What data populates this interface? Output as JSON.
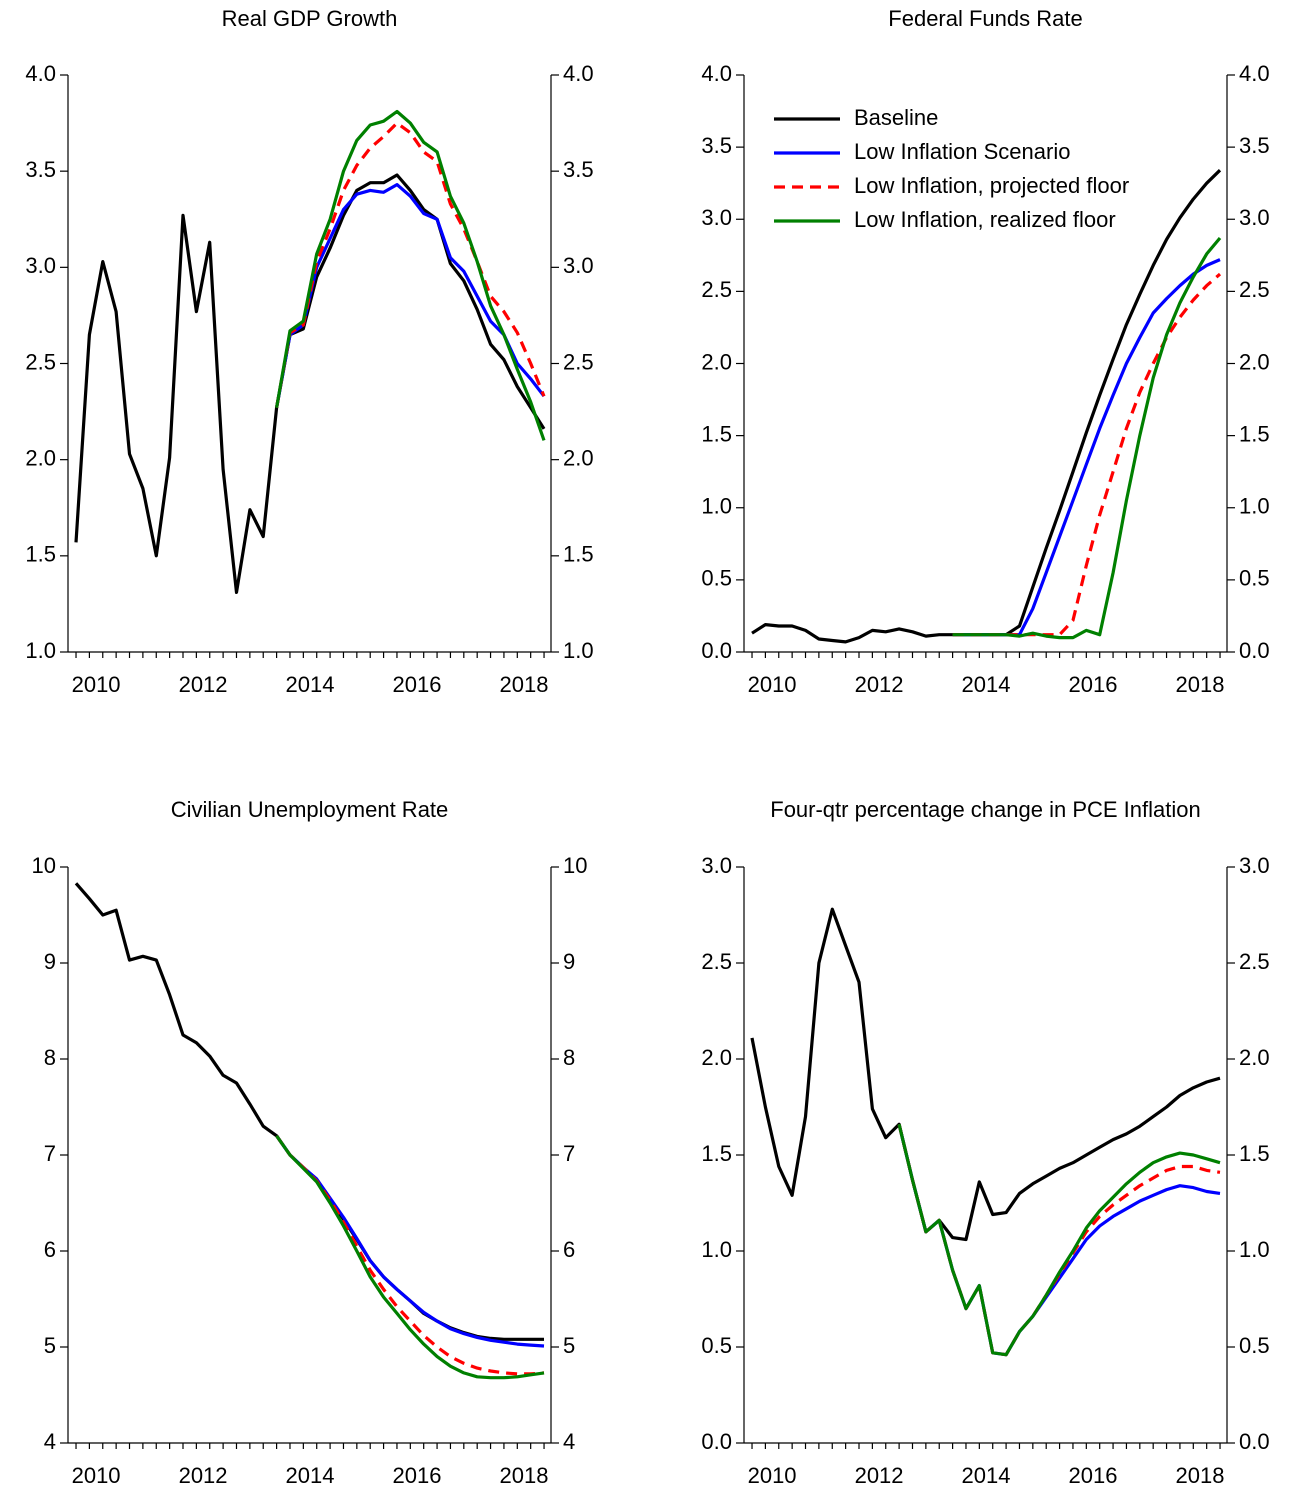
{
  "chart_data": [
    {
      "type": "line",
      "title": "Real GDP Growth",
      "x": [
        2010,
        2010.25,
        2010.5,
        2010.75,
        2011,
        2011.25,
        2011.5,
        2011.75,
        2012,
        2012.25,
        2012.5,
        2012.75,
        2013,
        2013.25,
        2013.5,
        2013.75,
        2014,
        2014.25,
        2014.5,
        2014.75,
        2015,
        2015.25,
        2015.5,
        2015.75,
        2016,
        2016.25,
        2016.5,
        2016.75,
        2017,
        2017.25,
        2017.5,
        2017.75,
        2018,
        2018.25,
        2018.5,
        2018.75
      ],
      "xlim": [
        2009.85,
        2018.88
      ],
      "xticks": [
        {
          "value": 2010.375,
          "label": "2010"
        },
        {
          "value": 2012.375,
          "label": "2012"
        },
        {
          "value": 2014.375,
          "label": "2014"
        },
        {
          "value": 2016.375,
          "label": "2016"
        },
        {
          "value": 2018.375,
          "label": "2018"
        }
      ],
      "ylim": [
        1,
        4
      ],
      "yticks": [
        {
          "value": 1,
          "label": "1.0"
        },
        {
          "value": 1.5,
          "label": "1.5"
        },
        {
          "value": 2,
          "label": "2.0"
        },
        {
          "value": 2.5,
          "label": "2.5"
        },
        {
          "value": 3,
          "label": "3.0"
        },
        {
          "value": 3.5,
          "label": "3.5"
        },
        {
          "value": 4,
          "label": "4.0"
        }
      ],
      "series": [
        {
          "color": "#000000",
          "dash": false,
          "values": [
            1.57,
            2.65,
            3.03,
            2.77,
            2.03,
            1.85,
            1.5,
            2.01,
            3.27,
            2.77,
            3.13,
            1.95,
            1.31,
            1.74,
            1.6,
            2.27,
            2.65,
            2.68,
            2.95,
            3.1,
            3.27,
            3.4,
            3.44,
            3.44,
            3.48,
            3.4,
            3.3,
            3.25,
            3.02,
            2.93,
            2.78,
            2.6,
            2.52,
            2.38,
            2.27,
            2.16
          ]
        },
        {
          "color": "#0000ff",
          "dash": false,
          "values": [
            null,
            null,
            null,
            null,
            null,
            null,
            null,
            null,
            null,
            null,
            null,
            null,
            null,
            null,
            null,
            2.27,
            2.65,
            2.7,
            3.0,
            3.15,
            3.3,
            3.38,
            3.4,
            3.39,
            3.43,
            3.37,
            3.28,
            3.25,
            3.05,
            2.98,
            2.85,
            2.72,
            2.65,
            2.5,
            2.42,
            2.33
          ]
        },
        {
          "color": "#ff0000",
          "dash": true,
          "values": [
            null,
            null,
            null,
            null,
            null,
            null,
            null,
            null,
            null,
            null,
            null,
            null,
            null,
            null,
            null,
            2.27,
            2.66,
            2.7,
            3.03,
            3.2,
            3.4,
            3.53,
            3.62,
            3.68,
            3.75,
            3.7,
            3.6,
            3.55,
            3.33,
            3.2,
            3.03,
            2.85,
            2.77,
            2.66,
            2.5,
            2.33
          ]
        },
        {
          "color": "#008000",
          "dash": false,
          "values": [
            null,
            null,
            null,
            null,
            null,
            null,
            null,
            null,
            null,
            null,
            null,
            null,
            null,
            null,
            null,
            2.27,
            2.67,
            2.72,
            3.07,
            3.25,
            3.5,
            3.66,
            3.74,
            3.76,
            3.81,
            3.75,
            3.65,
            3.6,
            3.37,
            3.23,
            3.03,
            2.8,
            2.65,
            2.47,
            2.3,
            2.1
          ]
        }
      ]
    },
    {
      "type": "line",
      "title": "Federal Funds Rate",
      "legend": "upper left",
      "x": [
        2010,
        2010.25,
        2010.5,
        2010.75,
        2011,
        2011.25,
        2011.5,
        2011.75,
        2012,
        2012.25,
        2012.5,
        2012.75,
        2013,
        2013.25,
        2013.5,
        2013.75,
        2014,
        2014.25,
        2014.5,
        2014.75,
        2015,
        2015.25,
        2015.5,
        2015.75,
        2016,
        2016.25,
        2016.5,
        2016.75,
        2017,
        2017.25,
        2017.5,
        2017.75,
        2018,
        2018.25,
        2018.5,
        2018.75
      ],
      "xlim": [
        2009.85,
        2018.88
      ],
      "xticks": [
        {
          "value": 2010.375,
          "label": "2010"
        },
        {
          "value": 2012.375,
          "label": "2012"
        },
        {
          "value": 2014.375,
          "label": "2014"
        },
        {
          "value": 2016.375,
          "label": "2016"
        },
        {
          "value": 2018.375,
          "label": "2018"
        }
      ],
      "ylim": [
        0,
        4
      ],
      "yticks": [
        {
          "value": 0,
          "label": "0.0"
        },
        {
          "value": 0.5,
          "label": "0.5"
        },
        {
          "value": 1,
          "label": "1.0"
        },
        {
          "value": 1.5,
          "label": "1.5"
        },
        {
          "value": 2,
          "label": "2.0"
        },
        {
          "value": 2.5,
          "label": "2.5"
        },
        {
          "value": 3,
          "label": "3.0"
        },
        {
          "value": 3.5,
          "label": "3.5"
        },
        {
          "value": 4,
          "label": "4.0"
        }
      ],
      "series": [
        {
          "name": "Baseline",
          "color": "#000000",
          "dash": false,
          "values": [
            0.13,
            0.19,
            0.18,
            0.18,
            0.15,
            0.09,
            0.08,
            0.07,
            0.1,
            0.15,
            0.14,
            0.16,
            0.14,
            0.11,
            0.12,
            0.12,
            0.12,
            0.12,
            0.12,
            0.12,
            0.18,
            0.45,
            0.72,
            0.98,
            1.25,
            1.52,
            1.78,
            2.03,
            2.27,
            2.48,
            2.68,
            2.86,
            3.01,
            3.14,
            3.25,
            3.34
          ]
        },
        {
          "name": "Low Inflation Scenario",
          "color": "#0000ff",
          "dash": false,
          "values": [
            null,
            null,
            null,
            null,
            null,
            null,
            null,
            null,
            null,
            null,
            null,
            null,
            null,
            null,
            null,
            0.12,
            0.12,
            0.12,
            0.12,
            0.12,
            0.12,
            0.3,
            0.55,
            0.8,
            1.05,
            1.3,
            1.55,
            1.78,
            2.0,
            2.18,
            2.35,
            2.45,
            2.54,
            2.62,
            2.68,
            2.72
          ]
        },
        {
          "name": "Low Inflation, projected floor",
          "color": "#ff0000",
          "dash": true,
          "values": [
            null,
            null,
            null,
            null,
            null,
            null,
            null,
            null,
            null,
            null,
            null,
            null,
            null,
            null,
            null,
            0.12,
            0.12,
            0.12,
            0.12,
            0.12,
            0.12,
            0.12,
            0.12,
            0.12,
            0.22,
            0.6,
            0.95,
            1.25,
            1.55,
            1.8,
            2.0,
            2.18,
            2.32,
            2.44,
            2.54,
            2.62
          ]
        },
        {
          "name": "Low Inflation, realized floor",
          "color": "#008000",
          "dash": false,
          "values": [
            null,
            null,
            null,
            null,
            null,
            null,
            null,
            null,
            null,
            null,
            null,
            null,
            null,
            null,
            null,
            0.12,
            0.12,
            0.12,
            0.12,
            0.12,
            0.11,
            0.13,
            0.11,
            0.1,
            0.1,
            0.15,
            0.12,
            0.55,
            1.05,
            1.5,
            1.9,
            2.2,
            2.42,
            2.6,
            2.76,
            2.87
          ]
        }
      ]
    },
    {
      "type": "line",
      "title": "Civilian Unemployment Rate",
      "x": [
        2010,
        2010.25,
        2010.5,
        2010.75,
        2011,
        2011.25,
        2011.5,
        2011.75,
        2012,
        2012.25,
        2012.5,
        2012.75,
        2013,
        2013.25,
        2013.5,
        2013.75,
        2014,
        2014.25,
        2014.5,
        2014.75,
        2015,
        2015.25,
        2015.5,
        2015.75,
        2016,
        2016.25,
        2016.5,
        2016.75,
        2017,
        2017.25,
        2017.5,
        2017.75,
        2018,
        2018.25,
        2018.5,
        2018.75
      ],
      "xlim": [
        2009.85,
        2018.88
      ],
      "xticks": [
        {
          "value": 2010.375,
          "label": "2010"
        },
        {
          "value": 2012.375,
          "label": "2012"
        },
        {
          "value": 2014.375,
          "label": "2014"
        },
        {
          "value": 2016.375,
          "label": "2016"
        },
        {
          "value": 2018.375,
          "label": "2018"
        }
      ],
      "ylim": [
        4,
        10
      ],
      "yticks": [
        4,
        5,
        6,
        7,
        8,
        9,
        10
      ],
      "series": [
        {
          "color": "#000000",
          "dash": false,
          "values": [
            9.83,
            9.67,
            9.5,
            9.55,
            9.03,
            9.07,
            9.03,
            8.67,
            8.25,
            8.17,
            8.03,
            7.83,
            7.75,
            7.53,
            7.3,
            7.2,
            7.0,
            6.87,
            6.73,
            6.53,
            6.33,
            6.12,
            5.9,
            5.73,
            5.6,
            5.48,
            5.35,
            5.27,
            5.2,
            5.15,
            5.11,
            5.09,
            5.08,
            5.08,
            5.08,
            5.08
          ]
        },
        {
          "color": "#0000ff",
          "dash": false,
          "values": [
            null,
            null,
            null,
            null,
            null,
            null,
            null,
            null,
            null,
            null,
            null,
            null,
            null,
            null,
            null,
            7.2,
            7.0,
            6.87,
            6.75,
            6.55,
            6.35,
            6.13,
            5.9,
            5.73,
            5.6,
            5.48,
            5.36,
            5.27,
            5.19,
            5.14,
            5.1,
            5.07,
            5.05,
            5.03,
            5.02,
            5.01
          ]
        },
        {
          "color": "#ff0000",
          "dash": true,
          "values": [
            null,
            null,
            null,
            null,
            null,
            null,
            null,
            null,
            null,
            null,
            null,
            null,
            null,
            null,
            null,
            7.2,
            7.0,
            6.87,
            6.73,
            6.53,
            6.3,
            6.05,
            5.8,
            5.6,
            5.42,
            5.27,
            5.12,
            5.0,
            4.9,
            4.83,
            4.78,
            4.75,
            4.73,
            4.72,
            4.72,
            4.73
          ]
        },
        {
          "color": "#008000",
          "dash": false,
          "values": [
            null,
            null,
            null,
            null,
            null,
            null,
            null,
            null,
            null,
            null,
            null,
            null,
            null,
            null,
            null,
            7.2,
            7.0,
            6.86,
            6.72,
            6.5,
            6.26,
            6.0,
            5.73,
            5.52,
            5.35,
            5.18,
            5.03,
            4.9,
            4.8,
            4.73,
            4.69,
            4.68,
            4.68,
            4.69,
            4.71,
            4.73
          ]
        }
      ]
    },
    {
      "type": "line",
      "title": "Four-qtr percentage change in PCE Inflation",
      "x": [
        2010,
        2010.25,
        2010.5,
        2010.75,
        2011,
        2011.25,
        2011.5,
        2011.75,
        2012,
        2012.25,
        2012.5,
        2012.75,
        2013,
        2013.25,
        2013.5,
        2013.75,
        2014,
        2014.25,
        2014.5,
        2014.75,
        2015,
        2015.25,
        2015.5,
        2015.75,
        2016,
        2016.25,
        2016.5,
        2016.75,
        2017,
        2017.25,
        2017.5,
        2017.75,
        2018,
        2018.25,
        2018.5,
        2018.75
      ],
      "xlim": [
        2009.85,
        2018.88
      ],
      "xticks": [
        {
          "value": 2010.375,
          "label": "2010"
        },
        {
          "value": 2012.375,
          "label": "2012"
        },
        {
          "value": 2014.375,
          "label": "2014"
        },
        {
          "value": 2016.375,
          "label": "2016"
        },
        {
          "value": 2018.375,
          "label": "2018"
        }
      ],
      "ylim": [
        0,
        3
      ],
      "yticks": [
        {
          "value": 0,
          "label": "0.0"
        },
        {
          "value": 0.5,
          "label": "0.5"
        },
        {
          "value": 1,
          "label": "1.0"
        },
        {
          "value": 1.5,
          "label": "1.5"
        },
        {
          "value": 2,
          "label": "2.0"
        },
        {
          "value": 2.5,
          "label": "2.5"
        },
        {
          "value": 3,
          "label": "3.0"
        }
      ],
      "series": [
        {
          "color": "#000000",
          "dash": false,
          "values": [
            2.11,
            1.75,
            1.44,
            1.29,
            1.7,
            2.5,
            2.78,
            2.59,
            2.4,
            1.74,
            1.59,
            1.66,
            1.37,
            1.1,
            1.16,
            1.07,
            1.06,
            1.36,
            1.19,
            1.2,
            1.3,
            1.35,
            1.39,
            1.43,
            1.46,
            1.5,
            1.54,
            1.58,
            1.61,
            1.65,
            1.7,
            1.75,
            1.81,
            1.85,
            1.88,
            1.9
          ]
        },
        {
          "color": "#0000ff",
          "dash": false,
          "values": [
            null,
            null,
            null,
            null,
            null,
            null,
            null,
            null,
            null,
            null,
            null,
            1.66,
            1.37,
            1.1,
            1.16,
            0.9,
            0.7,
            0.82,
            0.47,
            0.46,
            0.58,
            0.66,
            0.76,
            0.86,
            0.96,
            1.06,
            1.13,
            1.18,
            1.22,
            1.26,
            1.29,
            1.32,
            1.34,
            1.33,
            1.31,
            1.3
          ]
        },
        {
          "color": "#ff0000",
          "dash": true,
          "values": [
            null,
            null,
            null,
            null,
            null,
            null,
            null,
            null,
            null,
            null,
            null,
            1.66,
            1.37,
            1.1,
            1.16,
            0.9,
            0.7,
            0.82,
            0.47,
            0.46,
            0.58,
            0.66,
            0.77,
            0.88,
            0.99,
            1.1,
            1.18,
            1.24,
            1.29,
            1.34,
            1.38,
            1.42,
            1.44,
            1.44,
            1.42,
            1.41
          ]
        },
        {
          "color": "#008000",
          "dash": false,
          "values": [
            null,
            null,
            null,
            null,
            null,
            null,
            null,
            null,
            null,
            null,
            null,
            1.66,
            1.37,
            1.1,
            1.16,
            0.9,
            0.7,
            0.82,
            0.47,
            0.46,
            0.58,
            0.66,
            0.77,
            0.89,
            1.0,
            1.12,
            1.21,
            1.28,
            1.35,
            1.41,
            1.46,
            1.49,
            1.51,
            1.5,
            1.48,
            1.46
          ]
        }
      ]
    }
  ]
}
